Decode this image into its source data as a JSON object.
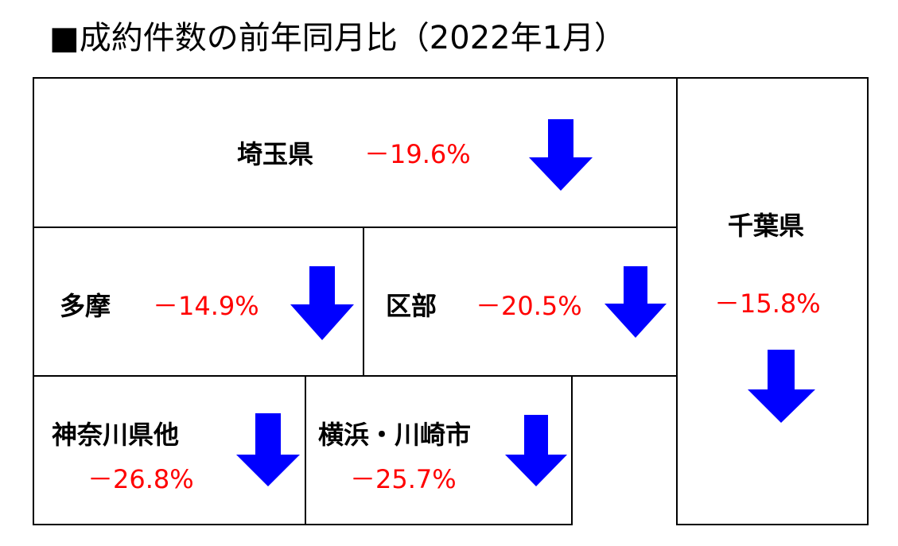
{
  "title": "■成約件数の前年同月比（2022年1月）",
  "regions": [
    {
      "name": "埼玉県",
      "change": "－19.6%"
    },
    {
      "name": "多摩",
      "change": "－14.9%"
    },
    {
      "name": "区部",
      "change": "－20.5%"
    },
    {
      "name": "千葉県",
      "change": "－15.8%"
    },
    {
      "name": "神奈川県他",
      "change": "－26.8%"
    },
    {
      "name": "横浜・川崎市",
      "change": "－25.7%"
    }
  ]
}
